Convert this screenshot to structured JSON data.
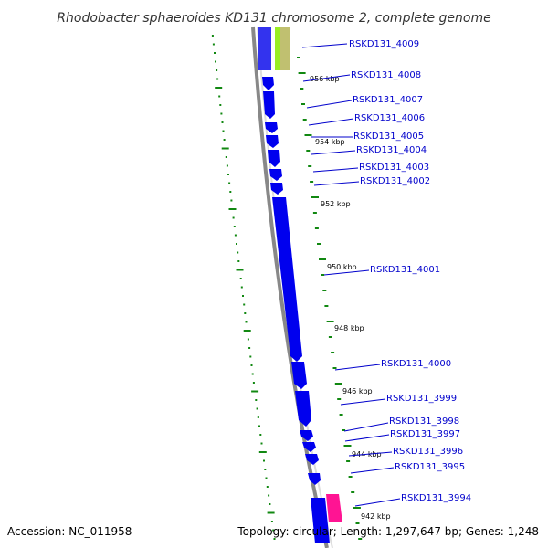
{
  "title": "Rhodobacter sphaeroides KD131 chromosome 2, complete genome",
  "footer": {
    "accession": "Accession: NC_011958",
    "topology": "Topology: circular; Length: 1,297,647 bp; Genes: 1,248"
  },
  "genes": [
    {
      "label": "RSKD131_4009"
    },
    {
      "label": "RSKD131_4008"
    },
    {
      "label": "RSKD131_4007"
    },
    {
      "label": "RSKD131_4006"
    },
    {
      "label": "RSKD131_4005"
    },
    {
      "label": "RSKD131_4004"
    },
    {
      "label": "RSKD131_4003"
    },
    {
      "label": "RSKD131_4002"
    },
    {
      "label": "RSKD131_4001"
    },
    {
      "label": "RSKD131_4000"
    },
    {
      "label": "RSKD131_3999"
    },
    {
      "label": "RSKD131_3998"
    },
    {
      "label": "RSKD131_3997"
    },
    {
      "label": "RSKD131_3996"
    },
    {
      "label": "RSKD131_3995"
    },
    {
      "label": "RSKD131_3994"
    }
  ],
  "kbp_ticks": [
    "956 kbp",
    "954 kbp",
    "952 kbp",
    "950 kbp",
    "948 kbp",
    "946 kbp",
    "944 kbp",
    "942 kbp"
  ],
  "colors": {
    "forward_gene": "#0000ee",
    "trna": "#99ee22",
    "rrna": "#c0c070",
    "pseudo": "#ff1493",
    "backbone": "#888888",
    "gc_skew": "#118811",
    "label": "#0000cc"
  }
}
